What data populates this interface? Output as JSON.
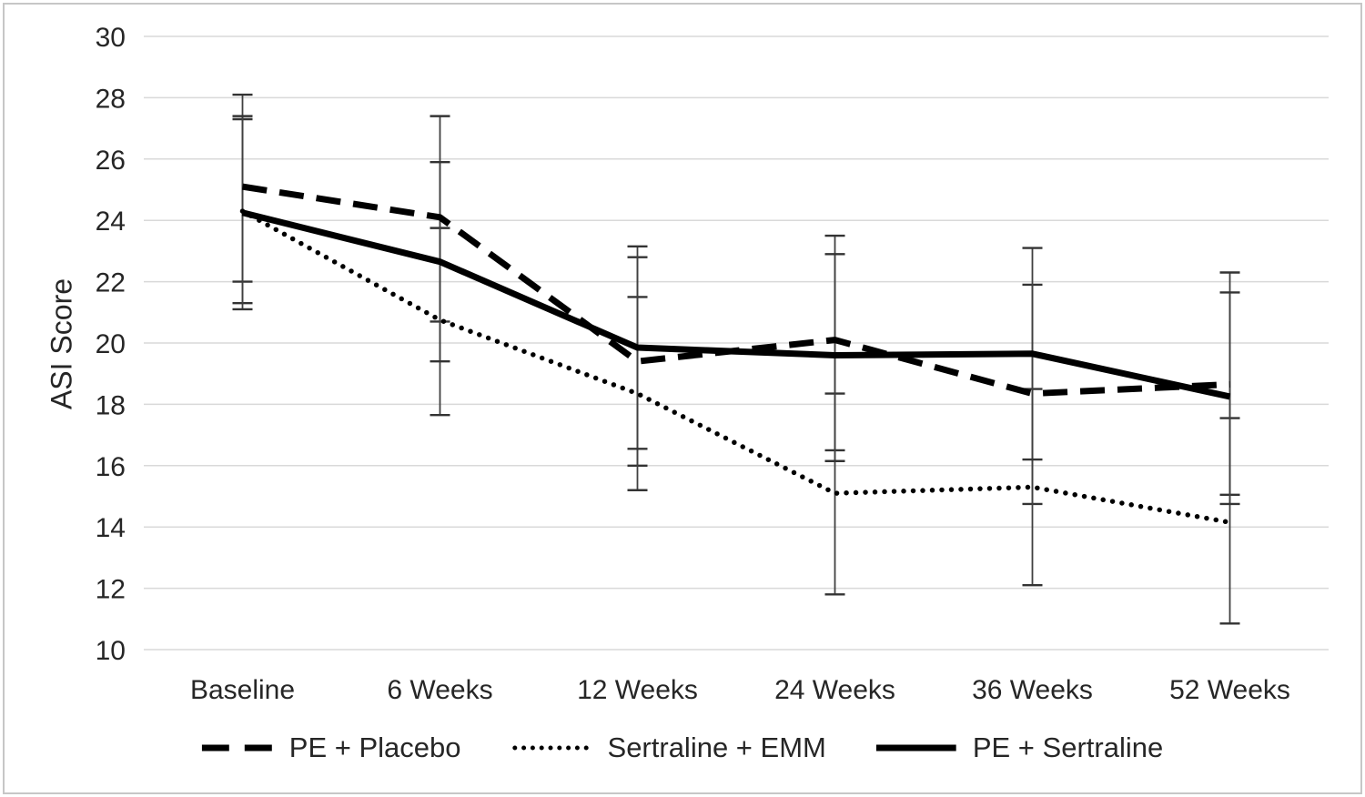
{
  "figure": {
    "background": "#ffffff",
    "border_color": "#c6c6c6"
  },
  "chart_data": {
    "type": "line",
    "title": "",
    "xlabel": "",
    "ylabel": "ASI Score",
    "categories": [
      "Baseline",
      "6 Weeks",
      "12 Weeks",
      "24 Weeks",
      "36 Weeks",
      "52 Weeks"
    ],
    "ylim": [
      10,
      30
    ],
    "yticks": [
      30,
      28,
      26,
      24,
      22,
      20,
      18,
      16,
      14,
      12,
      10
    ],
    "grid": "horizontal",
    "legend_position": "bottom",
    "gridline_color": "#d9d9d9",
    "error_bar_color": "#404040",
    "text_color": "#262626",
    "series": [
      {
        "name": "PE + Placebo",
        "line_style": "dashed",
        "color": "#000000",
        "values": [
          25.1,
          24.1,
          19.4,
          20.1,
          18.35,
          18.65
        ],
        "error_low": [
          22.0,
          20.7,
          16.0,
          16.5,
          14.75,
          15.05
        ],
        "error_high": [
          28.1,
          27.4,
          22.8,
          23.5,
          21.9,
          22.3
        ]
      },
      {
        "name": "Sertraline + EMM",
        "line_style": "dotted",
        "color": "#000000",
        "values": [
          24.3,
          20.75,
          18.35,
          15.1,
          15.3,
          14.15
        ],
        "error_low": [
          21.3,
          17.65,
          15.2,
          11.8,
          12.1,
          10.85
        ],
        "error_high": [
          27.3,
          23.75,
          21.5,
          18.35,
          18.5,
          17.55
        ]
      },
      {
        "name": "PE + Sertraline",
        "line_style": "solid",
        "color": "#000000",
        "values": [
          24.25,
          22.65,
          19.85,
          19.6,
          19.65,
          18.25
        ],
        "error_low": [
          21.1,
          19.4,
          16.55,
          16.15,
          16.2,
          14.75
        ],
        "error_high": [
          27.4,
          25.9,
          23.15,
          22.9,
          23.1,
          21.65
        ]
      }
    ]
  }
}
